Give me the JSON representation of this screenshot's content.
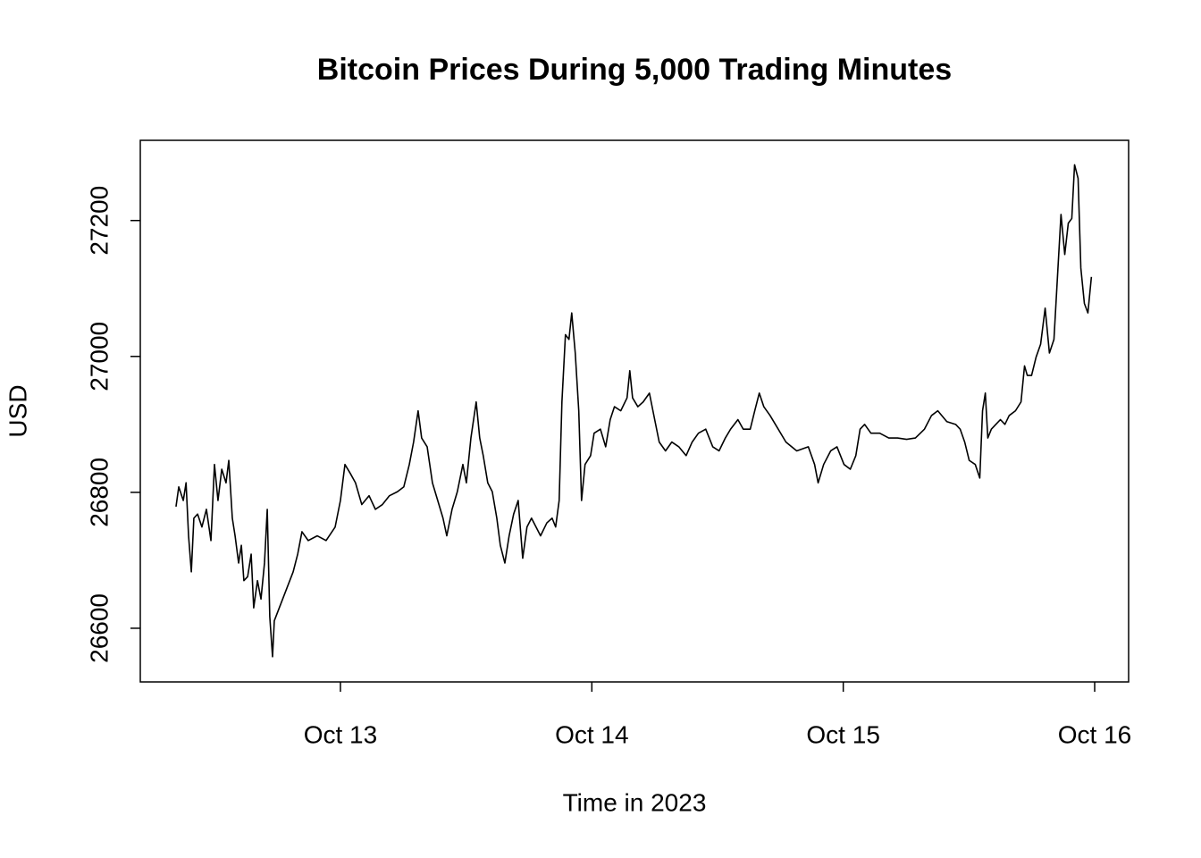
{
  "chart_data": {
    "type": "line",
    "title": "Bitcoin Prices During 5,000 Trading Minutes",
    "x_label": "Time in 2023",
    "y_label": "USD",
    "color": "#000000",
    "xlim": [
      12.204,
      16.135
    ],
    "ylim": [
      26521,
      27318
    ],
    "xticks": [
      {
        "value": 13,
        "label": "Oct 13"
      },
      {
        "value": 14,
        "label": "Oct 14"
      },
      {
        "value": 15,
        "label": "Oct 15"
      },
      {
        "value": 16,
        "label": "Oct 16"
      }
    ],
    "yticks": [
      26600,
      26800,
      27000,
      27200
    ],
    "x": [
      12.346,
      12.357,
      12.375,
      12.386,
      12.396,
      12.407,
      12.417,
      12.432,
      12.449,
      12.467,
      12.485,
      12.499,
      12.513,
      12.528,
      12.545,
      12.556,
      12.57,
      12.581,
      12.595,
      12.606,
      12.616,
      12.631,
      12.645,
      12.655,
      12.67,
      12.684,
      12.698,
      12.709,
      12.719,
      12.73,
      12.737,
      12.812,
      12.83,
      12.847,
      12.872,
      12.908,
      12.943,
      12.979,
      13.0,
      13.018,
      13.039,
      13.06,
      13.085,
      13.114,
      13.139,
      13.167,
      13.195,
      13.227,
      13.252,
      13.274,
      13.291,
      13.309,
      13.323,
      13.345,
      13.366,
      13.387,
      13.408,
      13.423,
      13.444,
      13.465,
      13.487,
      13.501,
      13.519,
      13.54,
      13.554,
      13.568,
      13.586,
      13.604,
      13.622,
      13.636,
      13.654,
      13.671,
      13.689,
      13.707,
      13.725,
      13.742,
      13.76,
      13.778,
      13.796,
      13.821,
      13.842,
      13.856,
      13.87,
      13.881,
      13.895,
      13.909,
      13.92,
      13.934,
      13.948,
      13.959,
      13.973,
      13.995,
      14.009,
      14.034,
      14.055,
      14.073,
      14.09,
      14.115,
      14.14,
      14.151,
      14.162,
      14.183,
      14.204,
      14.229,
      14.25,
      14.268,
      14.293,
      14.318,
      14.346,
      14.375,
      14.399,
      14.424,
      14.453,
      14.481,
      14.506,
      14.531,
      14.552,
      14.581,
      14.602,
      14.63,
      14.648,
      14.666,
      14.684,
      14.709,
      14.73,
      14.772,
      14.815,
      14.861,
      14.886,
      14.9,
      14.922,
      14.95,
      14.975,
      15.003,
      15.028,
      15.05,
      15.067,
      15.085,
      15.11,
      15.145,
      15.181,
      15.216,
      15.252,
      15.287,
      15.323,
      15.351,
      15.376,
      15.412,
      15.447,
      15.465,
      15.483,
      15.501,
      15.525,
      15.543,
      15.554,
      15.565,
      15.575,
      15.589,
      15.607,
      15.625,
      15.643,
      15.66,
      15.685,
      15.707,
      15.721,
      15.732,
      15.749,
      15.767,
      15.785,
      15.803,
      15.82,
      15.838,
      15.852,
      15.866,
      15.881,
      15.895,
      15.909,
      15.92,
      15.934,
      15.945,
      15.959,
      15.973,
      15.987
    ],
    "values": [
      26779,
      26808,
      26788,
      26814,
      26736,
      26683,
      26762,
      26768,
      26749,
      26775,
      26729,
      26841,
      26788,
      26834,
      26814,
      26847,
      26762,
      26736,
      26696,
      26722,
      26670,
      26676,
      26709,
      26630,
      26670,
      26643,
      26696,
      26775,
      26617,
      26558,
      26611,
      26683,
      26709,
      26742,
      26729,
      26736,
      26729,
      26749,
      26788,
      26841,
      26828,
      26814,
      26782,
      26795,
      26775,
      26782,
      26795,
      26801,
      26808,
      26841,
      26874,
      26920,
      26880,
      26867,
      26814,
      26788,
      26762,
      26736,
      26775,
      26801,
      26841,
      26814,
      26880,
      26933,
      26880,
      26854,
      26814,
      26801,
      26762,
      26722,
      26696,
      26736,
      26768,
      26788,
      26703,
      26749,
      26762,
      26749,
      26736,
      26755,
      26762,
      26749,
      26788,
      26933,
      27032,
      27025,
      27064,
      27005,
      26920,
      26788,
      26841,
      26854,
      26887,
      26893,
      26867,
      26907,
      26926,
      26920,
      26939,
      26979,
      26939,
      26926,
      26933,
      26946,
      26907,
      26874,
      26861,
      26874,
      26867,
      26854,
      26874,
      26887,
      26893,
      26867,
      26861,
      26880,
      26893,
      26907,
      26893,
      26893,
      26920,
      26946,
      26926,
      26913,
      26900,
      26874,
      26861,
      26867,
      26841,
      26814,
      26841,
      26861,
      26867,
      26841,
      26834,
      26854,
      26893,
      26900,
      26887,
      26887,
      26880,
      26880,
      26878,
      26880,
      26893,
      26913,
      26920,
      26904,
      26900,
      26893,
      26874,
      26847,
      26841,
      26821,
      26920,
      26946,
      26880,
      26893,
      26900,
      26907,
      26900,
      26913,
      26920,
      26933,
      26986,
      26972,
      26972,
      26999,
      27018,
      27071,
      27005,
      27025,
      27117,
      27209,
      27150,
      27196,
      27203,
      27282,
      27262,
      27130,
      27078,
      27064,
      27117
    ]
  }
}
